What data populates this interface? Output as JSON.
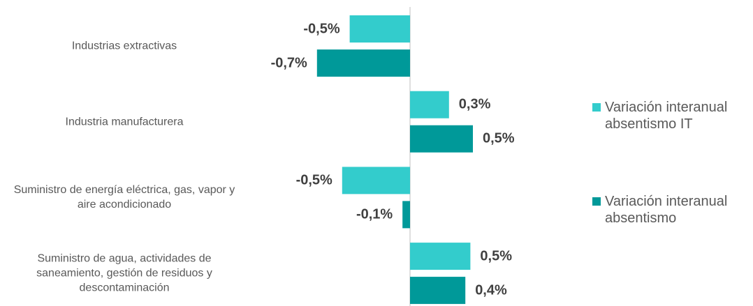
{
  "chart_data": {
    "type": "bar",
    "orientation": "horizontal",
    "categories": [
      "Industrias extractivas",
      "Industria manufacturera",
      "Suministro de energía eléctrica, gas, vapor y aire acondicionado",
      "Suministro de agua, actividades de saneamiento, gestión de residuos y descontaminación"
    ],
    "series": [
      {
        "name": "Variación interanual absentismo IT",
        "color": "#33cccc",
        "values": [
          -0.48,
          0.31,
          -0.54,
          0.48
        ],
        "value_labels": [
          "-0,5%",
          "0,3%",
          "-0,5%",
          "0,5%"
        ]
      },
      {
        "name": "Variación interanual absentismo",
        "color": "#009999",
        "values": [
          -0.74,
          0.5,
          -0.06,
          0.44
        ],
        "value_labels": [
          "-0,7%",
          "0,5%",
          "-0,1%",
          "0,4%"
        ]
      }
    ],
    "xlim": [
      -0.8,
      0.8
    ],
    "legend": "right"
  }
}
